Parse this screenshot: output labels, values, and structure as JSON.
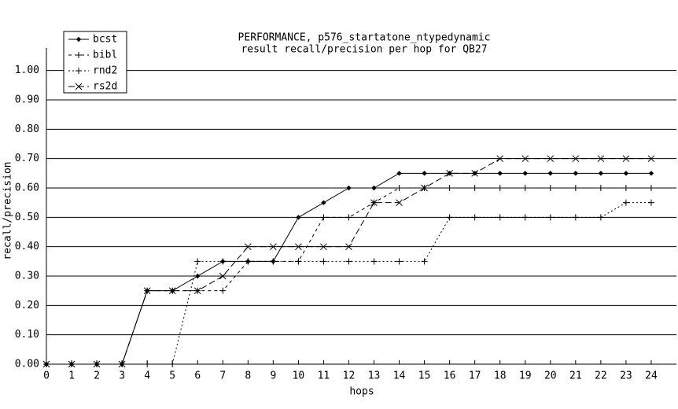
{
  "chart_data": {
    "type": "line",
    "title": "PERFORMANCE, p576_startatone_ntypedynamic",
    "subtitle": "result recall/precision per hop for QB27",
    "x_label": "hops",
    "y_label": "recall/precision",
    "x": [
      0,
      1,
      2,
      3,
      4,
      5,
      6,
      7,
      8,
      9,
      10,
      11,
      12,
      13,
      14,
      15,
      16,
      17,
      18,
      19,
      20,
      21,
      22,
      23,
      24
    ],
    "xlim": [
      0,
      25
    ],
    "xticks": [
      0,
      1,
      2,
      3,
      4,
      5,
      6,
      7,
      8,
      9,
      10,
      11,
      12,
      13,
      14,
      15,
      16,
      17,
      18,
      19,
      20,
      21,
      22,
      23,
      24
    ],
    "ylim": [
      0,
      1.05
    ],
    "yticks": [
      {
        "value": 0,
        "label": "0.00"
      },
      {
        "value": 0.1,
        "label": "0.10"
      },
      {
        "value": 0.2,
        "label": "0.20"
      },
      {
        "value": 0.3,
        "label": "0.30"
      },
      {
        "value": 0.4,
        "label": "0.40"
      },
      {
        "value": 0.5,
        "label": "0.50"
      },
      {
        "value": 0.6,
        "label": "0.60"
      },
      {
        "value": 0.7,
        "label": "0.70"
      },
      {
        "value": 0.8,
        "label": "0.80"
      },
      {
        "value": 0.9,
        "label": "0.90"
      },
      {
        "value": 1.0,
        "label": "1.00"
      }
    ],
    "grid": true,
    "legend": "top-left",
    "series": [
      {
        "name": "bcst",
        "color": "#000000",
        "dash": "none",
        "marker": "diamond",
        "values": [
          0,
          0,
          0,
          0,
          0.25,
          0.25,
          0.3,
          0.35,
          0.35,
          0.35,
          0.5,
          0.55,
          0.6,
          0.6,
          0.65,
          0.65,
          0.65,
          0.65,
          0.65,
          0.65,
          0.65,
          0.65,
          0.65,
          0.65,
          0.65
        ]
      },
      {
        "name": "bibl",
        "color": "#000000",
        "dash": "4,4",
        "marker": "plus",
        "values": [
          0,
          0,
          0,
          0,
          0.25,
          0.25,
          0.25,
          0.25,
          0.35,
          0.35,
          0.35,
          0.5,
          0.5,
          0.55,
          0.6,
          0.6,
          0.6,
          0.6,
          0.6,
          0.6,
          0.6,
          0.6,
          0.6,
          0.6,
          0.6
        ]
      },
      {
        "name": "rnd2",
        "color": "#000000",
        "dash": "2,3",
        "marker": "plus",
        "values": [
          0,
          0,
          0,
          0,
          0,
          0,
          0.35,
          0.35,
          0.35,
          0.35,
          0.35,
          0.35,
          0.35,
          0.35,
          0.35,
          0.35,
          0.5,
          0.5,
          0.5,
          0.5,
          0.5,
          0.5,
          0.5,
          0.55,
          0.55
        ]
      },
      {
        "name": "rs2d",
        "color": "#000000",
        "dash": "8,4",
        "marker": "cross",
        "values": [
          0,
          0,
          0,
          0,
          0.25,
          0.25,
          0.25,
          0.3,
          0.4,
          0.4,
          0.4,
          0.4,
          0.4,
          0.55,
          0.55,
          0.6,
          0.65,
          0.65,
          0.7,
          0.7,
          0.7,
          0.7,
          0.7,
          0.7,
          0.7
        ]
      }
    ]
  }
}
